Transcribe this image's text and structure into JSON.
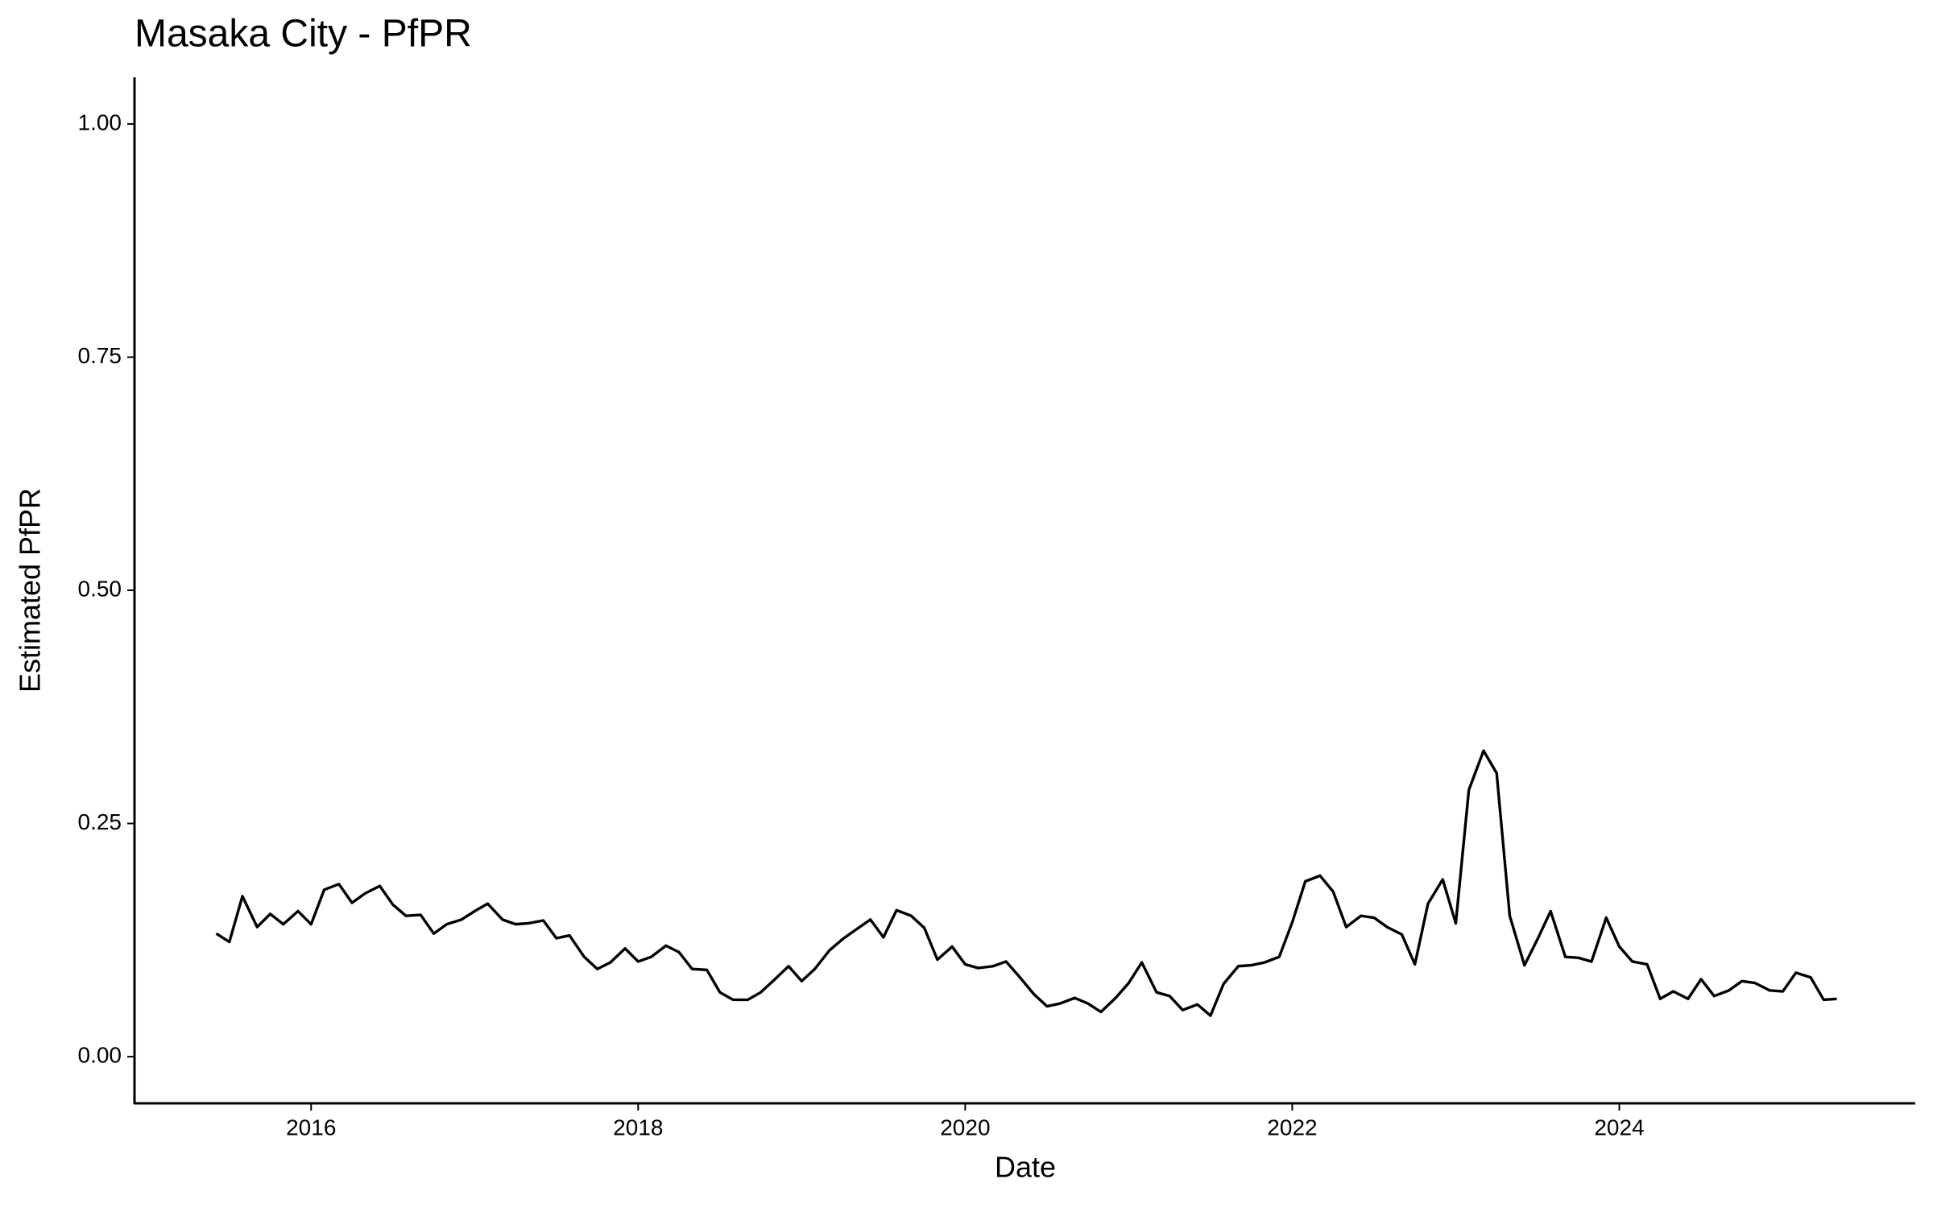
{
  "chart_data": {
    "type": "line",
    "title": "Masaka City - PfPR",
    "x_label": "Date",
    "y_label": "Estimated PfPR",
    "xlim": [
      2014.92,
      2025.81
    ],
    "xticks": [
      2016,
      2018,
      2020,
      2022,
      2024
    ],
    "ylim": [
      -0.05,
      1.05
    ],
    "yticks": [
      {
        "value": 0,
        "label": "0.00"
      },
      0.25,
      {
        "value": 0.5,
        "label": "0.50"
      },
      0.75,
      {
        "value": 1,
        "label": "1.00"
      }
    ],
    "grid": false,
    "color": "#000000",
    "x": [
      2015.42,
      2015.5,
      2015.58,
      2015.67,
      2015.75,
      2015.83,
      2015.92,
      2016.0,
      2016.08,
      2016.17,
      2016.25,
      2016.33,
      2016.42,
      2016.5,
      2016.58,
      2016.67,
      2016.75,
      2016.83,
      2016.92,
      2017.0,
      2017.08,
      2017.17,
      2017.25,
      2017.33,
      2017.42,
      2017.5,
      2017.58,
      2017.67,
      2017.75,
      2017.83,
      2017.92,
      2018.0,
      2018.08,
      2018.17,
      2018.25,
      2018.33,
      2018.42,
      2018.5,
      2018.58,
      2018.67,
      2018.75,
      2018.83,
      2018.92,
      2019.0,
      2019.08,
      2019.17,
      2019.25,
      2019.33,
      2019.42,
      2019.5,
      2019.58,
      2019.67,
      2019.75,
      2019.83,
      2019.92,
      2020.0,
      2020.08,
      2020.17,
      2020.25,
      2020.33,
      2020.42,
      2020.5,
      2020.58,
      2020.67,
      2020.75,
      2020.83,
      2020.92,
      2021.0,
      2021.08,
      2021.17,
      2021.25,
      2021.33,
      2021.42,
      2021.5,
      2021.58,
      2021.67,
      2021.75,
      2021.83,
      2021.92,
      2022.0,
      2022.08,
      2022.17,
      2022.25,
      2022.33,
      2022.42,
      2022.5,
      2022.58,
      2022.67,
      2022.75,
      2022.83,
      2022.92,
      2023.0,
      2023.08,
      2023.17,
      2023.25,
      2023.33,
      2023.42,
      2023.5,
      2023.58,
      2023.67,
      2023.75,
      2023.83,
      2023.92,
      2024.0,
      2024.08,
      2024.17,
      2024.25,
      2024.33,
      2024.42,
      2024.5,
      2024.58,
      2024.67,
      2024.75,
      2024.83,
      2024.92,
      2025.0,
      2025.08,
      2025.17,
      2025.25,
      2025.33
    ],
    "values": [
      0.132,
      0.123,
      0.172,
      0.139,
      0.153,
      0.142,
      0.156,
      0.142,
      0.179,
      0.185,
      0.165,
      0.175,
      0.183,
      0.163,
      0.151,
      0.152,
      0.132,
      0.142,
      0.147,
      0.156,
      0.164,
      0.147,
      0.142,
      0.143,
      0.146,
      0.127,
      0.13,
      0.107,
      0.094,
      0.101,
      0.116,
      0.102,
      0.107,
      0.119,
      0.112,
      0.094,
      0.093,
      0.069,
      0.061,
      0.061,
      0.069,
      0.082,
      0.097,
      0.081,
      0.094,
      0.114,
      0.126,
      0.136,
      0.147,
      0.128,
      0.157,
      0.151,
      0.138,
      0.104,
      0.118,
      0.099,
      0.095,
      0.097,
      0.102,
      0.086,
      0.067,
      0.054,
      0.057,
      0.063,
      0.057,
      0.048,
      0.063,
      0.079,
      0.101,
      0.069,
      0.065,
      0.05,
      0.056,
      0.044,
      0.078,
      0.097,
      0.098,
      0.101,
      0.107,
      0.144,
      0.188,
      0.194,
      0.177,
      0.139,
      0.151,
      0.149,
      0.139,
      0.131,
      0.099,
      0.164,
      0.19,
      0.143,
      0.286,
      0.328,
      0.304,
      0.151,
      0.098,
      0.126,
      0.156,
      0.107,
      0.106,
      0.102,
      0.149,
      0.118,
      0.102,
      0.099,
      0.062,
      0.07,
      0.062,
      0.083,
      0.065,
      0.071,
      0.081,
      0.079,
      0.071,
      0.07,
      0.09,
      0.085,
      0.061,
      0.062
    ]
  }
}
